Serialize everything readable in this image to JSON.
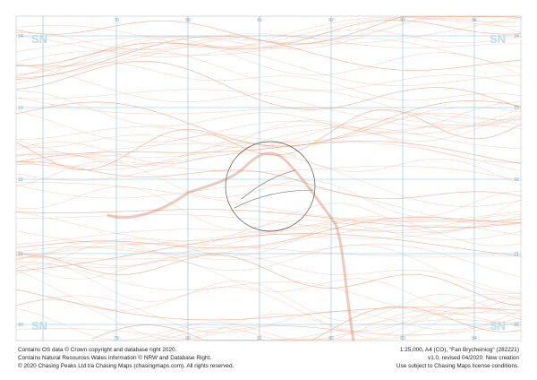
{
  "map": {
    "grid_labels": {
      "top": [
        "79",
        "80",
        "81",
        "82",
        "83",
        "84"
      ],
      "bottom": [
        "79",
        "80",
        "81",
        "82",
        "83",
        "84"
      ],
      "left": [
        "24",
        "23",
        "22",
        "21",
        "20"
      ],
      "right": [
        "24",
        "23",
        "22",
        "21",
        "20"
      ]
    },
    "square_labels": [
      "SN",
      "SN",
      "SN",
      "SN"
    ]
  },
  "footer": {
    "left": [
      "Contains OS data © Crown copyright and database right 2020.",
      "Contains Natural Resources Wales information © NRW and Database Right.",
      "© 2020 Chasing Peaks Ltd t/a Chasing Maps (chasingmaps.com). All rights reserved."
    ],
    "right": [
      "1:25,000, A4 (CO), \"Fan Brycheiniog\" (282221)",
      "v1.0, revised 04/2020: New creation",
      "Use subject to Chasing Maps license conditions."
    ]
  }
}
